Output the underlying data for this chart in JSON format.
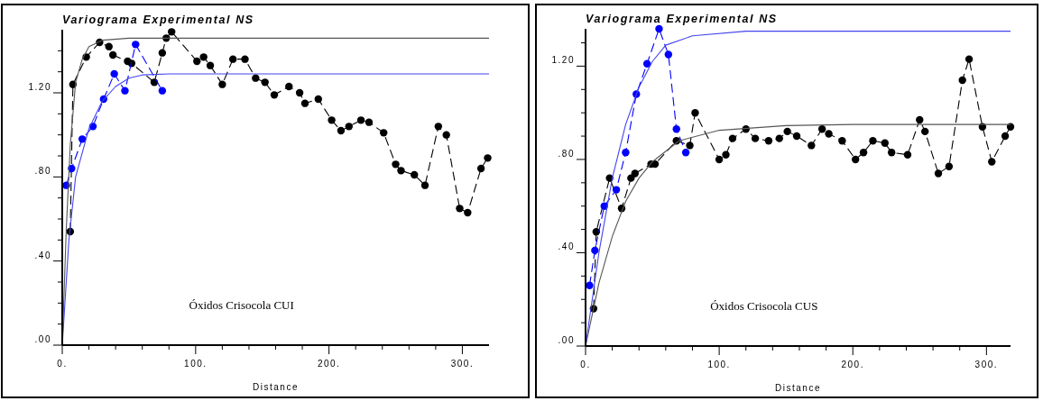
{
  "chart_data": [
    {
      "type": "line",
      "title": "Variograma Experimental NS",
      "xlabel": "Distance",
      "annotations": [
        "Óxidos Crisocola CUI"
      ],
      "xlim": [
        0,
        320
      ],
      "ylim": [
        0,
        1.5
      ],
      "xticks": [
        {
          "value": 0,
          "label": "0."
        },
        {
          "value": 20,
          "label": null
        },
        {
          "value": 40,
          "label": null
        },
        {
          "value": 60,
          "label": null
        },
        {
          "value": 80,
          "label": null
        },
        {
          "value": 100,
          "label": "100."
        },
        {
          "value": 120,
          "label": null
        },
        {
          "value": 140,
          "label": null
        },
        {
          "value": 160,
          "label": null
        },
        {
          "value": 180,
          "label": null
        },
        {
          "value": 200,
          "label": "200."
        },
        {
          "value": 220,
          "label": null
        },
        {
          "value": 240,
          "label": null
        },
        {
          "value": 260,
          "label": null
        },
        {
          "value": 280,
          "label": null
        },
        {
          "value": 300,
          "label": "300."
        }
      ],
      "yticks": [
        {
          "value": 0,
          "label": ".00"
        },
        {
          "value": 0.1,
          "label": null
        },
        {
          "value": 0.2,
          "label": null
        },
        {
          "value": 0.3,
          "label": null
        },
        {
          "value": 0.4,
          "label": ".40"
        },
        {
          "value": 0.5,
          "label": null
        },
        {
          "value": 0.6,
          "label": null
        },
        {
          "value": 0.7,
          "label": null
        },
        {
          "value": 0.8,
          "label": ".80"
        },
        {
          "value": 0.9,
          "label": null
        },
        {
          "value": 1.0,
          "label": null
        },
        {
          "value": 1.1,
          "label": null
        },
        {
          "value": 1.2,
          "label": "1.20"
        },
        {
          "value": 1.3,
          "label": null
        },
        {
          "value": 1.4,
          "label": null
        }
      ],
      "grid": false,
      "series": [
        {
          "color": "#000000",
          "line_style": "dashed",
          "marker": "circle",
          "x": [
            6,
            8,
            18,
            28,
            35,
            38,
            49,
            52,
            69,
            75,
            78,
            82,
            101,
            106,
            111,
            120,
            128,
            137,
            145,
            152,
            159,
            170,
            178,
            182,
            192,
            202,
            209,
            215,
            224,
            230,
            241,
            250,
            254,
            264,
            272,
            282,
            288,
            298,
            304,
            314,
            319
          ],
          "values": [
            0.54,
            1.24,
            1.37,
            1.44,
            1.42,
            1.38,
            1.35,
            1.34,
            1.25,
            1.39,
            1.46,
            1.49,
            1.35,
            1.37,
            1.33,
            1.24,
            1.36,
            1.36,
            1.27,
            1.25,
            1.19,
            1.23,
            1.2,
            1.15,
            1.17,
            1.07,
            1.02,
            1.04,
            1.07,
            1.06,
            1.01,
            0.86,
            0.83,
            0.81,
            0.76,
            1.04,
            1.0,
            0.65,
            0.63,
            0.84,
            0.89
          ]
        },
        {
          "color": "#0000ff",
          "line_style": "dashed",
          "marker": "circle",
          "x": [
            3,
            7,
            15,
            23,
            31,
            39,
            47,
            55,
            75
          ],
          "values": [
            0.76,
            0.84,
            0.98,
            1.04,
            1.17,
            1.29,
            1.21,
            1.43,
            1.21
          ]
        },
        {
          "color": "#555555",
          "line_style": "solid",
          "marker": "none",
          "x": [
            0,
            3,
            6,
            10,
            15,
            20,
            30,
            50,
            320
          ],
          "values": [
            0,
            0.55,
            0.95,
            1.25,
            1.36,
            1.42,
            1.45,
            1.46,
            1.46
          ]
        },
        {
          "color": "#4444ee",
          "line_style": "solid",
          "marker": "none",
          "x": [
            0,
            5,
            10,
            20,
            30,
            40,
            50,
            60,
            80,
            320
          ],
          "values": [
            0,
            0.5,
            0.8,
            1.03,
            1.16,
            1.23,
            1.27,
            1.285,
            1.29,
            1.29
          ]
        }
      ]
    },
    {
      "type": "line",
      "title": "Variograma Experimental NS",
      "xlabel": "Distance",
      "annotations": [
        "Óxidos Crisocola CUS"
      ],
      "xlim": [
        0,
        318
      ],
      "ylim": [
        0,
        1.36
      ],
      "xticks": [
        {
          "value": 0,
          "label": "0."
        },
        {
          "value": 20,
          "label": null
        },
        {
          "value": 40,
          "label": null
        },
        {
          "value": 60,
          "label": null
        },
        {
          "value": 80,
          "label": null
        },
        {
          "value": 100,
          "label": "100."
        },
        {
          "value": 120,
          "label": null
        },
        {
          "value": 140,
          "label": null
        },
        {
          "value": 160,
          "label": null
        },
        {
          "value": 180,
          "label": null
        },
        {
          "value": 200,
          "label": "200."
        },
        {
          "value": 220,
          "label": null
        },
        {
          "value": 240,
          "label": null
        },
        {
          "value": 260,
          "label": null
        },
        {
          "value": 280,
          "label": null
        },
        {
          "value": 300,
          "label": "300."
        }
      ],
      "yticks": [
        {
          "value": 0,
          "label": ".00"
        },
        {
          "value": 0.1,
          "label": null
        },
        {
          "value": 0.2,
          "label": null
        },
        {
          "value": 0.3,
          "label": null
        },
        {
          "value": 0.4,
          "label": ".40"
        },
        {
          "value": 0.5,
          "label": null
        },
        {
          "value": 0.6,
          "label": null
        },
        {
          "value": 0.7,
          "label": null
        },
        {
          "value": 0.8,
          "label": ".80"
        },
        {
          "value": 0.9,
          "label": null
        },
        {
          "value": 1.0,
          "label": null
        },
        {
          "value": 1.1,
          "label": null
        },
        {
          "value": 1.2,
          "label": "1.20"
        },
        {
          "value": 1.3,
          "label": null
        }
      ],
      "grid": false,
      "series": [
        {
          "color": "#000000",
          "line_style": "dashed",
          "marker": "circle",
          "x": [
            6,
            8,
            18,
            27,
            34,
            37,
            49,
            52,
            68,
            78,
            82,
            100,
            105,
            110,
            120,
            127,
            137,
            145,
            151,
            158,
            169,
            177,
            182,
            192,
            202,
            208,
            215,
            224,
            229,
            241,
            250,
            254,
            264,
            272,
            282,
            287,
            297,
            304,
            314,
            318
          ],
          "values": [
            0.16,
            0.49,
            0.72,
            0.59,
            0.72,
            0.74,
            0.78,
            0.78,
            0.88,
            0.86,
            1.0,
            0.8,
            0.82,
            0.89,
            0.93,
            0.89,
            0.88,
            0.89,
            0.92,
            0.9,
            0.86,
            0.93,
            0.91,
            0.88,
            0.8,
            0.83,
            0.88,
            0.87,
            0.83,
            0.82,
            0.97,
            0.92,
            0.74,
            0.77,
            1.14,
            1.23,
            0.94,
            0.79,
            0.9,
            0.94
          ]
        },
        {
          "color": "#0000ff",
          "line_style": "dashed",
          "marker": "circle",
          "x": [
            3,
            7,
            14,
            23,
            30,
            38,
            46,
            55,
            62,
            68,
            75
          ],
          "values": [
            0.26,
            0.41,
            0.6,
            0.67,
            0.83,
            1.08,
            1.21,
            1.36,
            1.25,
            0.93,
            0.83
          ]
        },
        {
          "color": "#555555",
          "line_style": "solid",
          "marker": "none",
          "x": [
            0,
            10,
            20,
            30,
            40,
            50,
            70,
            100,
            150,
            200,
            318
          ],
          "values": [
            0,
            0.27,
            0.47,
            0.62,
            0.72,
            0.79,
            0.88,
            0.925,
            0.945,
            0.95,
            0.95
          ]
        },
        {
          "color": "#4444ee",
          "line_style": "solid",
          "marker": "none",
          "x": [
            0,
            10,
            20,
            30,
            40,
            50,
            60,
            80,
            120,
            318
          ],
          "values": [
            0,
            0.4,
            0.72,
            0.95,
            1.11,
            1.22,
            1.29,
            1.33,
            1.35,
            1.35
          ]
        }
      ]
    }
  ]
}
